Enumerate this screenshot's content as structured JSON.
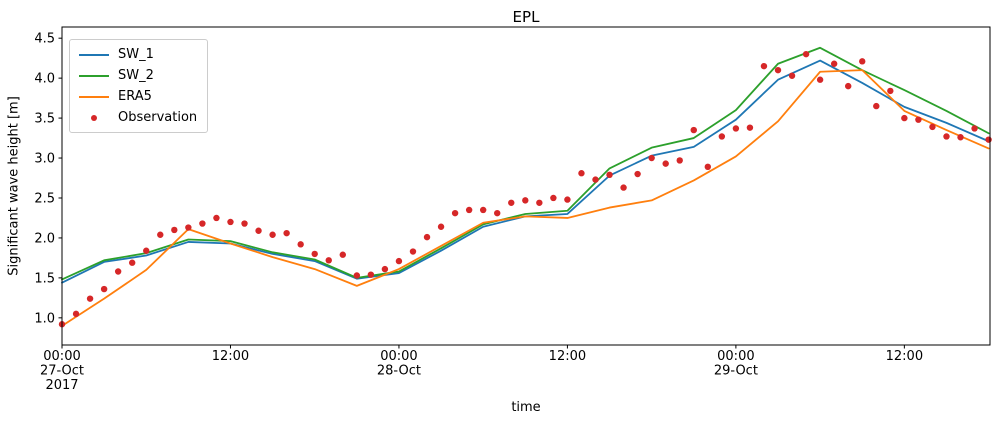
{
  "chart_data": {
    "type": "line",
    "title": "EPL",
    "xlabel": "time",
    "ylabel": "Significant wave height [m]",
    "x_unit": "hours since 2017-10-27 00:00",
    "xlim": [
      0,
      66.1
    ],
    "ylim": [
      0.66,
      4.64
    ],
    "yticks": [
      1.0,
      1.5,
      2.0,
      2.5,
      3.0,
      3.5,
      4.0,
      4.5
    ],
    "xticks": [
      {
        "t": 0,
        "lines": [
          "00:00",
          "27-Oct",
          "2017"
        ]
      },
      {
        "t": 12,
        "lines": [
          "12:00"
        ]
      },
      {
        "t": 24,
        "lines": [
          "00:00",
          "28-Oct"
        ]
      },
      {
        "t": 36,
        "lines": [
          "12:00"
        ]
      },
      {
        "t": 48,
        "lines": [
          "00:00",
          "29-Oct"
        ]
      },
      {
        "t": 60,
        "lines": [
          "12:00"
        ]
      }
    ],
    "grid": false,
    "legend_position": "upper left",
    "series": [
      {
        "name": "SW_1",
        "type": "line",
        "color": "#1f77b4",
        "x_start": 0,
        "x_step": 3,
        "values": [
          1.44,
          1.7,
          1.78,
          1.95,
          1.93,
          1.8,
          1.71,
          1.49,
          1.56,
          1.84,
          2.14,
          2.27,
          2.3,
          2.78,
          3.03,
          3.14,
          3.48,
          3.98,
          4.22,
          3.94,
          3.64,
          3.44,
          3.21
        ]
      },
      {
        "name": "SW_2",
        "type": "line",
        "color": "#2ca02c",
        "x_start": 0,
        "x_step": 3,
        "values": [
          1.48,
          1.72,
          1.81,
          1.98,
          1.96,
          1.82,
          1.73,
          1.5,
          1.58,
          1.87,
          2.17,
          2.3,
          2.34,
          2.87,
          3.13,
          3.25,
          3.6,
          4.18,
          4.38,
          4.1,
          3.85,
          3.59,
          3.31
        ]
      },
      {
        "name": "ERA5",
        "type": "line",
        "color": "#ff7f0e",
        "x_start": 0,
        "x_step": 3,
        "values": [
          0.9,
          1.24,
          1.6,
          2.11,
          1.93,
          1.76,
          1.61,
          1.4,
          1.61,
          1.9,
          2.19,
          2.27,
          2.25,
          2.38,
          2.47,
          2.72,
          3.02,
          3.46,
          4.08,
          4.1,
          3.59,
          3.35,
          3.12
        ]
      },
      {
        "name": "Observation",
        "type": "scatter",
        "color": "#d62728",
        "x_start": 0,
        "x_step": 1,
        "values": [
          0.92,
          1.05,
          1.24,
          1.36,
          1.58,
          1.69,
          1.84,
          2.04,
          2.1,
          2.13,
          2.18,
          2.25,
          2.2,
          2.18,
          2.09,
          2.04,
          2.06,
          1.92,
          1.8,
          1.72,
          1.79,
          1.53,
          1.54,
          1.61,
          1.71,
          1.83,
          2.01,
          2.14,
          2.31,
          2.35,
          2.35,
          2.31,
          2.44,
          2.47,
          2.44,
          2.5,
          2.48,
          2.81,
          2.73,
          2.79,
          2.63,
          2.8,
          3.0,
          2.93,
          2.97,
          3.35,
          2.89,
          3.27,
          3.37,
          3.38,
          4.15,
          4.1,
          4.03,
          4.3,
          3.98,
          4.18,
          3.9,
          4.21,
          3.65,
          3.84,
          3.5,
          3.48,
          3.39,
          3.27,
          3.26,
          3.37,
          3.23
        ]
      }
    ]
  }
}
